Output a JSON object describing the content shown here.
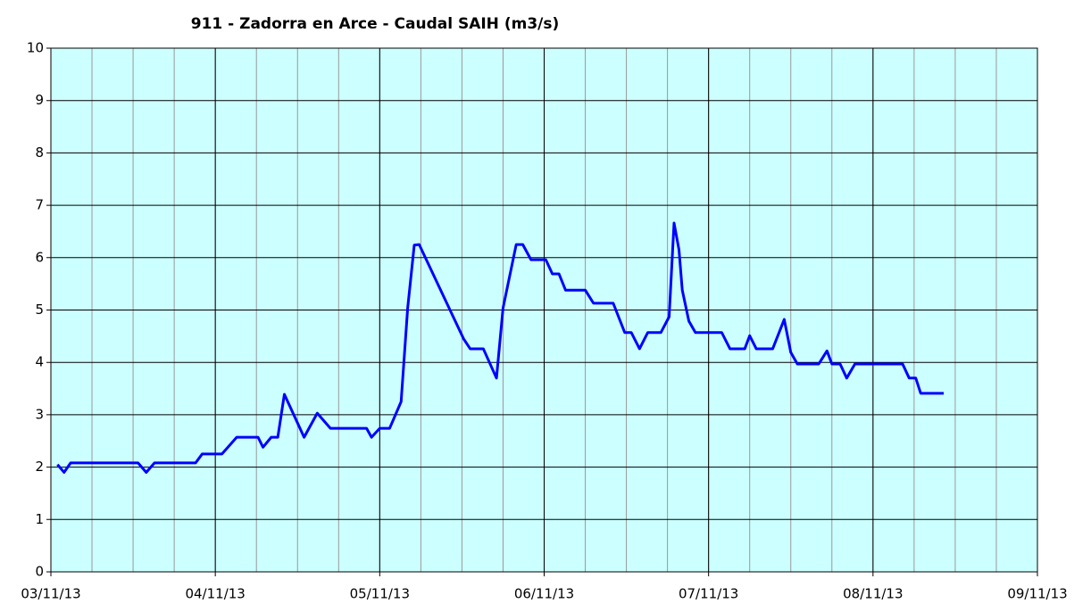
{
  "chart_data": {
    "type": "line",
    "title": "911 - Zadorra en Arce - Caudal SAIH (m3/s)",
    "x": [
      0.04,
      0.08,
      0.12,
      0.53,
      0.58,
      0.63,
      0.88,
      0.92,
      1.04,
      1.13,
      1.26,
      1.29,
      1.34,
      1.38,
      1.42,
      1.54,
      1.62,
      1.7,
      1.92,
      1.95,
      2.0,
      2.06,
      2.13,
      2.17,
      2.21,
      2.24,
      2.51,
      2.55,
      2.63,
      2.71,
      2.75,
      2.83,
      2.87,
      2.92,
      3.01,
      3.05,
      3.09,
      3.13,
      3.25,
      3.3,
      3.42,
      3.49,
      3.53,
      3.58,
      3.63,
      3.71,
      3.76,
      3.79,
      3.82,
      3.84,
      3.88,
      3.92,
      4.08,
      4.13,
      4.22,
      4.25,
      4.29,
      4.39,
      4.46,
      4.5,
      4.54,
      4.67,
      4.72,
      4.75,
      4.8,
      4.84,
      4.89,
      5.18,
      5.22,
      5.26,
      5.29,
      5.43
    ],
    "series": [
      {
        "name": "Caudal",
        "color": "#0000ff",
        "values": [
          2.05,
          1.9,
          2.08,
          2.08,
          1.9,
          2.08,
          2.08,
          2.25,
          2.25,
          2.57,
          2.57,
          2.38,
          2.57,
          2.57,
          3.39,
          2.57,
          3.03,
          2.74,
          2.74,
          2.57,
          2.74,
          2.74,
          3.25,
          5.04,
          6.24,
          6.25,
          4.45,
          4.26,
          4.26,
          3.7,
          5.04,
          6.25,
          6.25,
          5.96,
          5.96,
          5.69,
          5.69,
          5.38,
          5.38,
          5.13,
          5.13,
          4.57,
          4.57,
          4.26,
          4.57,
          4.57,
          4.87,
          6.66,
          6.15,
          5.38,
          4.79,
          4.57,
          4.57,
          4.26,
          4.26,
          4.51,
          4.26,
          4.26,
          4.82,
          4.19,
          3.97,
          3.97,
          4.22,
          3.97,
          3.97,
          3.7,
          3.97,
          3.97,
          3.7,
          3.7,
          3.41,
          3.41
        ]
      }
    ],
    "xlim": [
      0,
      6
    ],
    "xticks": [
      {
        "value": 0,
        "label": "03/11/13"
      },
      {
        "value": 1,
        "label": "04/11/13"
      },
      {
        "value": 2,
        "label": "05/11/13"
      },
      {
        "value": 3,
        "label": "06/11/13"
      },
      {
        "value": 4,
        "label": "07/11/13"
      },
      {
        "value": 5,
        "label": "08/11/13"
      },
      {
        "value": 6,
        "label": "09/11/13"
      }
    ],
    "xminor": 0.25,
    "ylim": [
      0,
      10
    ],
    "yticks": [
      0,
      1,
      2,
      3,
      4,
      5,
      6,
      7,
      8,
      9,
      10
    ],
    "grid": true
  }
}
